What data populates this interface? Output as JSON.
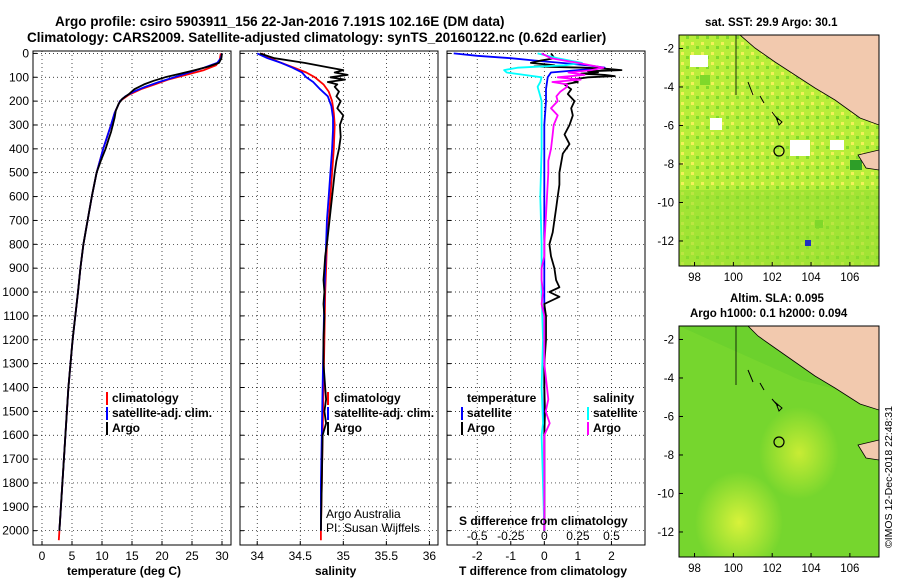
{
  "header": {
    "title_line1": "Argo profile: csiro 5903911_156 22-Jan-2016 7.191S 102.16E (DM data)",
    "title_line2": "Climatology: CARS2009. Satellite-adjusted climatology: synTS_20160122.nc (0.62d earlier)"
  },
  "colors": {
    "climatology": "#ff0000",
    "satellite": "#0000ff",
    "argo": "#000000",
    "argo_salinity_diff": "#ff00ff",
    "satellite_salinity_diff": "#00ffff"
  },
  "depth_ticks": [
    "0",
    "100",
    "200",
    "300",
    "400",
    "500",
    "600",
    "700",
    "800",
    "900",
    "1000",
    "1100",
    "1200",
    "1300",
    "1400",
    "1500",
    "1600",
    "1700",
    "1800",
    "1900",
    "2000"
  ],
  "chart_data": [
    {
      "type": "line",
      "name": "temperature",
      "xlabel": "temperature (deg C)",
      "ylabel": "",
      "xlim": [
        -1.5,
        31.5
      ],
      "ylim": [
        2060,
        -10
      ],
      "x_ticks": [
        "0",
        "5",
        "10",
        "15",
        "20",
        "25",
        "30"
      ],
      "grid": true,
      "legend": [
        "climatology",
        "satellite-adj. clim.",
        "Argo"
      ],
      "legend_position": "lower-center",
      "series": [
        {
          "key": "climatology",
          "depth": [
            0,
            30,
            50,
            70,
            90,
            110,
            130,
            150,
            175,
            200,
            250,
            300,
            400,
            500,
            600,
            700,
            800,
            900,
            1000,
            1200,
            1400,
            1600,
            1800,
            2000,
            2040
          ],
          "values": [
            29.8,
            29.6,
            29.0,
            27.0,
            24.0,
            21.0,
            18.8,
            16.5,
            14.4,
            13.0,
            12.1,
            11.5,
            10.2,
            9.1,
            8.3,
            7.6,
            6.9,
            6.4,
            6.0,
            5.1,
            4.4,
            3.9,
            3.4,
            2.9,
            2.8
          ]
        },
        {
          "key": "satellite",
          "depth": [
            0,
            20,
            40,
            60,
            80,
            100,
            120,
            140,
            160,
            180,
            200,
            250,
            300,
            400,
            500,
            600,
            700,
            800,
            900,
            1000,
            1200,
            1400,
            1600,
            1800,
            2000
          ],
          "values": [
            30.0,
            29.8,
            29.2,
            27.0,
            24.5,
            22.0,
            19.5,
            17.2,
            15.3,
            13.9,
            13.0,
            12.1,
            11.5,
            10.2,
            9.1,
            8.3,
            7.6,
            6.9,
            6.4,
            6.0,
            5.1,
            4.4,
            3.9,
            3.4,
            2.9
          ]
        },
        {
          "key": "argo",
          "depth": [
            0,
            20,
            40,
            55,
            70,
            85,
            100,
            115,
            130,
            150,
            170,
            190,
            210,
            240,
            270,
            300,
            330,
            360,
            400,
            450,
            500,
            600,
            700,
            800,
            900,
            1000,
            1200,
            1400,
            1600,
            1800,
            2000
          ],
          "values": [
            30.0,
            29.9,
            29.5,
            27.8,
            25.5,
            23.0,
            20.5,
            18.6,
            17.0,
            15.4,
            14.5,
            13.4,
            12.8,
            12.3,
            12.1,
            11.8,
            11.5,
            11.1,
            10.6,
            9.8,
            9.1,
            8.3,
            7.6,
            6.9,
            6.4,
            6.0,
            5.1,
            4.4,
            3.9,
            3.4,
            2.9
          ]
        }
      ]
    },
    {
      "type": "line",
      "name": "salinity",
      "xlabel": "salinity",
      "ylabel": "",
      "xlim": [
        33.8,
        36.1
      ],
      "ylim": [
        2060,
        -10
      ],
      "x_ticks": [
        "34",
        "34.5",
        "35",
        "35.5",
        "36"
      ],
      "grid": true,
      "legend": [
        "climatology",
        "satellite-adj. clim.",
        "Argo"
      ],
      "legend_position": "lower-right",
      "annotation": [
        "Argo Australia",
        "PI: Susan Wijffels"
      ],
      "series": [
        {
          "key": "climatology",
          "depth": [
            0,
            20,
            40,
            60,
            80,
            100,
            130,
            160,
            200,
            250,
            300,
            400,
            500,
            600,
            700,
            800,
            900,
            1000,
            1200,
            1400,
            1600,
            1800,
            2000,
            2040
          ],
          "values": [
            34.05,
            34.15,
            34.28,
            34.43,
            34.57,
            34.67,
            34.77,
            34.83,
            34.87,
            34.89,
            34.9,
            34.89,
            34.87,
            34.85,
            34.83,
            34.81,
            34.8,
            34.79,
            34.78,
            34.77,
            34.76,
            34.75,
            34.74,
            34.74
          ]
        },
        {
          "key": "satellite",
          "depth": [
            0,
            20,
            40,
            60,
            80,
            100,
            120,
            150,
            180,
            220,
            270,
            320,
            400,
            500,
            600,
            700,
            800,
            900,
            1000,
            1200,
            1400,
            1600,
            1800,
            2000
          ],
          "values": [
            34.0,
            34.12,
            34.28,
            34.41,
            34.52,
            34.57,
            34.65,
            34.73,
            34.82,
            34.86,
            34.88,
            34.88,
            34.87,
            34.85,
            34.83,
            34.81,
            34.8,
            34.79,
            34.78,
            34.77,
            34.76,
            34.75,
            34.74,
            34.74
          ]
        },
        {
          "key": "argo",
          "depth": [
            0,
            20,
            40,
            60,
            70,
            80,
            90,
            100,
            110,
            120,
            130,
            140,
            160,
            180,
            200,
            230,
            260,
            300,
            350,
            400,
            450,
            500,
            600,
            700,
            800,
            850,
            900,
            950,
            1000,
            1050,
            1100,
            1200,
            1300,
            1400,
            1450,
            1500,
            1550,
            1600,
            1800,
            2000
          ],
          "values": [
            34.03,
            34.2,
            34.55,
            34.85,
            35.0,
            34.9,
            35.05,
            34.85,
            35.02,
            34.82,
            34.93,
            34.9,
            34.95,
            34.92,
            34.97,
            34.93,
            35.0,
            34.96,
            34.97,
            34.95,
            34.92,
            34.9,
            34.87,
            34.84,
            34.81,
            34.79,
            34.78,
            34.77,
            34.78,
            34.77,
            34.78,
            34.77,
            34.77,
            34.79,
            34.8,
            34.78,
            34.8,
            34.76,
            34.75,
            34.74
          ]
        }
      ]
    },
    {
      "type": "line",
      "name": "differences",
      "xlabel": "T difference from climatology",
      "x2label": "S difference from climatology",
      "ylabel": "",
      "xlim": [
        -2.9,
        3.0
      ],
      "ylim": [
        2060,
        -10
      ],
      "x_ticks": [
        "-2",
        "-1",
        "0",
        "1",
        "2"
      ],
      "x2_ticks": [
        "-0.5",
        "-0.25",
        "0",
        "0.25",
        "0.5"
      ],
      "grid": true,
      "legend_left": [
        "temperature",
        "satellite",
        "Argo"
      ],
      "legend_right": [
        "salinity",
        "satellite",
        "Argo"
      ],
      "legend_position": "lower",
      "series": [
        {
          "key": "temperature-satellite",
          "depth": [
            0,
            10,
            20,
            30,
            40,
            50,
            60,
            70,
            80,
            100,
            150,
            200,
            300,
            400,
            600,
            800,
            1000,
            1200,
            1500,
            1800,
            2000
          ],
          "values": [
            -2.7,
            -2.0,
            -1.0,
            -0.3,
            0.5,
            1.3,
            1.8,
            1.0,
            0.2,
            0.1,
            0.05,
            0.05,
            0.0,
            0.0,
            0.0,
            0.0,
            0.0,
            0.0,
            0.0,
            0.0,
            0.0
          ]
        },
        {
          "key": "temperature-argo",
          "depth": [
            0,
            20,
            30,
            40,
            50,
            55,
            60,
            65,
            70,
            75,
            80,
            85,
            90,
            95,
            100,
            110,
            120,
            130,
            140,
            150,
            170,
            200,
            230,
            260,
            300,
            340,
            380,
            420,
            460,
            500,
            550,
            600,
            650,
            700,
            750,
            800,
            850,
            900,
            950,
            980,
            1000,
            1020,
            1050,
            1100,
            1200,
            1300,
            1400,
            1500,
            1600,
            1700,
            1800,
            1900,
            2000
          ],
          "values": [
            0.2,
            0.3,
            -0.1,
            -0.4,
            0.3,
            -0.3,
            1.2,
            1.9,
            2.3,
            1.3,
            1.6,
            1.1,
            1.8,
            2.1,
            1.3,
            0.8,
            1.0,
            0.6,
            0.7,
            0.8,
            0.7,
            0.9,
            0.8,
            0.85,
            0.75,
            0.6,
            0.75,
            0.55,
            0.5,
            0.45,
            0.45,
            0.4,
            0.35,
            0.3,
            0.25,
            0.15,
            0.2,
            0.3,
            0.35,
            0.45,
            0.15,
            0.45,
            0.0,
            0.05,
            0.05,
            0.0,
            0.0,
            0.02,
            0.0,
            0.0,
            0.0,
            0.0,
            0.0
          ]
        },
        {
          "key": "salinity-satellite",
          "depth": [
            0,
            20,
            40,
            50,
            60,
            70,
            80,
            90,
            100,
            120,
            140,
            160,
            180,
            200,
            250,
            300,
            400,
            600,
            800,
            1000,
            1200,
            1400,
            1550,
            1600,
            1800,
            2000
          ],
          "values": [
            -0.05,
            0.1,
            0.28,
            0.15,
            -0.2,
            -0.3,
            -0.28,
            -0.15,
            -0.02,
            -0.03,
            -0.05,
            -0.04,
            -0.03,
            -0.02,
            -0.02,
            -0.02,
            -0.02,
            -0.03,
            -0.02,
            -0.02,
            -0.01,
            -0.02,
            -0.01,
            -0.02,
            -0.01,
            0.0
          ]
        },
        {
          "key": "salinity-argo",
          "depth": [
            0,
            20,
            40,
            60,
            70,
            80,
            90,
            100,
            110,
            120,
            130,
            140,
            160,
            180,
            200,
            230,
            260,
            300,
            350,
            400,
            450,
            500,
            600,
            700,
            800,
            850,
            900,
            950,
            1000,
            1050,
            1100,
            1200,
            1300,
            1400,
            1450,
            1500,
            1550,
            1600,
            1700,
            1800,
            2000
          ],
          "values": [
            -0.02,
            0.05,
            0.25,
            0.44,
            0.35,
            0.18,
            0.3,
            0.1,
            0.27,
            0.06,
            0.17,
            0.17,
            0.12,
            0.09,
            0.1,
            0.05,
            0.1,
            0.07,
            0.06,
            0.05,
            0.03,
            0.03,
            0.02,
            0.01,
            0.0,
            0.0,
            -0.02,
            -0.02,
            -0.01,
            -0.02,
            0.0,
            0.0,
            0.0,
            0.02,
            0.03,
            0.01,
            0.04,
            0.0,
            0.0,
            0.0,
            0.0
          ]
        }
      ]
    }
  ],
  "maps": [
    {
      "title_lines": [
        "sat. SST: 29.9  Argo: 30.1"
      ],
      "x_ticks": [
        "98",
        "100",
        "102",
        "104",
        "106"
      ],
      "y_ticks": [
        "-2",
        "-4",
        "-6",
        "-8",
        "-10",
        "-12"
      ],
      "profile_marker": {
        "lon": 102.16,
        "lat": -7.191
      }
    },
    {
      "title_lines": [
        "Altim. SLA: 0.095",
        "Argo h1000: 0.1  h2000: 0.094"
      ],
      "x_ticks": [
        "98",
        "100",
        "102",
        "104",
        "106"
      ],
      "y_ticks": [
        "-2",
        "-4",
        "-6",
        "-8",
        "-10",
        "-12"
      ],
      "profile_marker": {
        "lon": 102.16,
        "lat": -7.191
      }
    }
  ],
  "signature": "©IMOS 12-Dec-2018 22:48:31"
}
